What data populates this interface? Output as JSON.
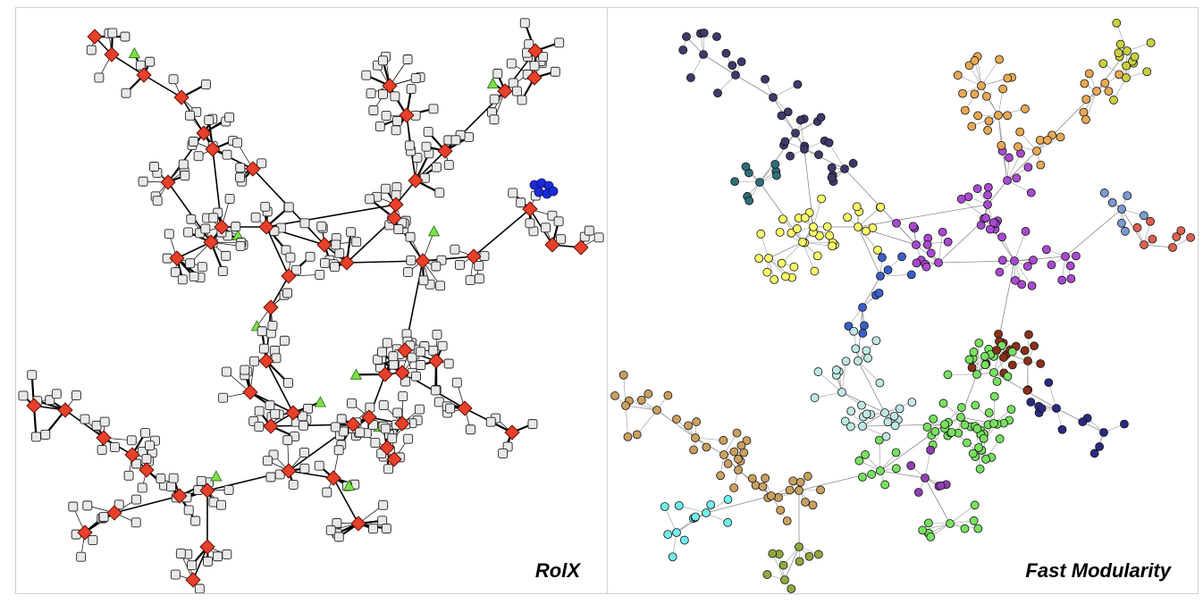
{
  "panels": [
    {
      "id": "rolx",
      "label": "RolX"
    },
    {
      "id": "fast-modularity",
      "label": "Fast Modularity"
    }
  ],
  "colors": {
    "role_bridge": "#e8402a",
    "role_periphery": "#e8e8e8",
    "role_leaf": "#7be04a",
    "role_clique": "#1c2bd6",
    "edge": "#000000",
    "community_palette": [
      "#3d3a6b",
      "#a0202a",
      "#2e5fae",
      "#c9d040",
      "#e9a954",
      "#8a4a2a",
      "#ffff6a",
      "#3a5fc8",
      "#a84ad0",
      "#7a9ad0",
      "#e06050",
      "#2e6e7a",
      "#8a3018",
      "#78e060",
      "#2a2a80",
      "#bfe8e4",
      "#c9a060",
      "#70f0f0",
      "#90a840",
      "#9040b0"
    ]
  }
}
